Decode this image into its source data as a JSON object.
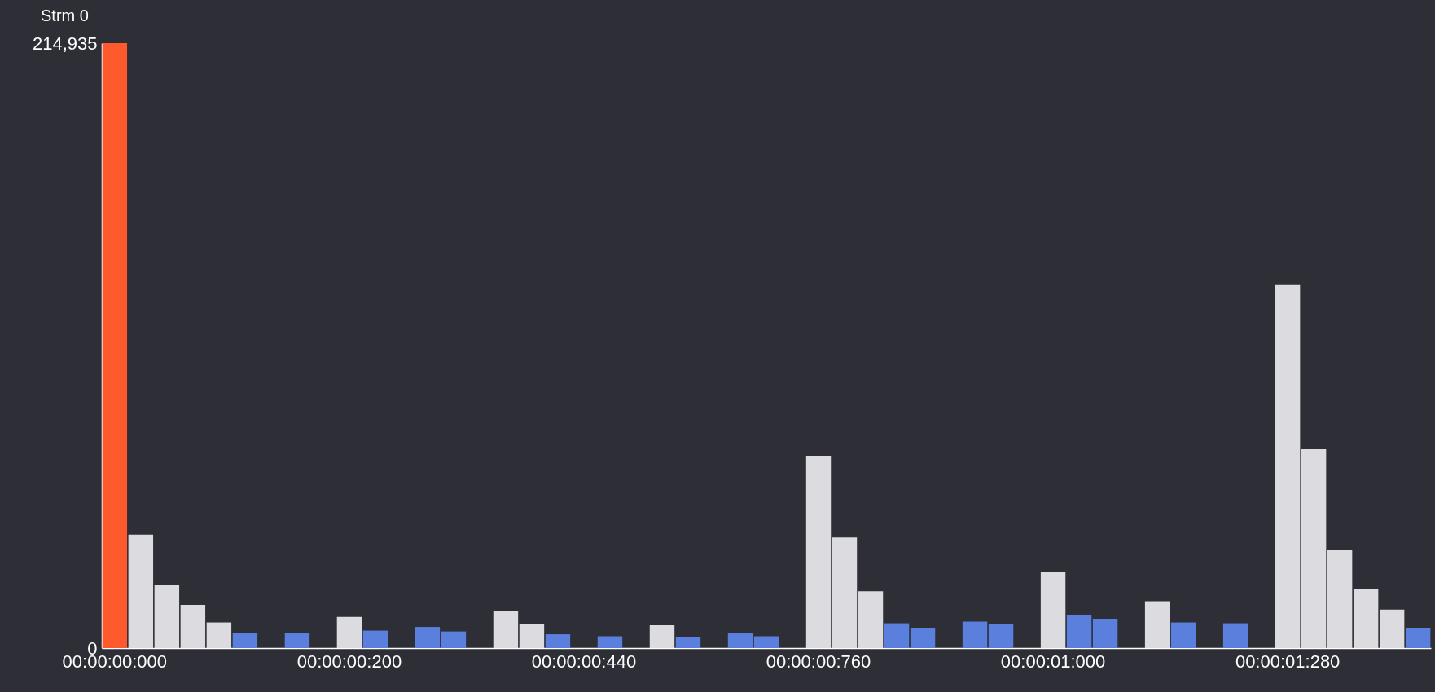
{
  "chart_data": {
    "type": "bar",
    "title": "Strm 0",
    "categories": [
      "00:00:00:000",
      null,
      null,
      null,
      null,
      null,
      null,
      null,
      null,
      "00:00:00:200",
      null,
      null,
      null,
      null,
      null,
      null,
      null,
      null,
      "00:00:00:440",
      null,
      null,
      null,
      null,
      null,
      null,
      null,
      null,
      "00:00:00:760",
      null,
      null,
      null,
      null,
      null,
      null,
      null,
      null,
      "00:00:01:000",
      null,
      null,
      null,
      null,
      null,
      null,
      null,
      null,
      "00:00:01:280",
      null,
      null,
      null,
      null,
      null
    ],
    "values": [
      214935,
      40300,
      22400,
      15300,
      9100,
      5200,
      null,
      5200,
      null,
      11100,
      6200,
      null,
      7500,
      5900,
      null,
      13000,
      8500,
      4900,
      null,
      4200,
      null,
      8100,
      3900,
      null,
      5200,
      4200,
      null,
      68300,
      39300,
      20200,
      8800,
      7200,
      null,
      9400,
      8500,
      null,
      27000,
      11700,
      10400,
      null,
      16600,
      9100,
      null,
      8800,
      null,
      129100,
      70900,
      34800,
      20800,
      13700,
      7200
    ],
    "colors": [
      "#ff5a2e",
      "#dcdce0",
      "#dcdce0",
      "#dcdce0",
      "#dcdce0",
      "#5b7fdc",
      "#5b7fdc",
      "#5b7fdc",
      "#5b7fdc",
      "#dcdce0",
      "#5b7fdc",
      "#5b7fdc",
      "#5b7fdc",
      "#5b7fdc",
      "#5b7fdc",
      "#dcdce0",
      "#dcdce0",
      "#5b7fdc",
      "#5b7fdc",
      "#5b7fdc",
      "#5b7fdc",
      "#dcdce0",
      "#5b7fdc",
      "#5b7fdc",
      "#5b7fdc",
      "#5b7fdc",
      "#5b7fdc",
      "#dcdce0",
      "#dcdce0",
      "#dcdce0",
      "#5b7fdc",
      "#5b7fdc",
      "#5b7fdc",
      "#5b7fdc",
      "#5b7fdc",
      "#5b7fdc",
      "#dcdce0",
      "#5b7fdc",
      "#5b7fdc",
      "#5b7fdc",
      "#dcdce0",
      "#5b7fdc",
      "#5b7fdc",
      "#5b7fdc",
      "#5b7fdc",
      "#dcdce0",
      "#dcdce0",
      "#dcdce0",
      "#dcdce0",
      "#dcdce0",
      "#5b7fdc"
    ],
    "ylim": [
      0,
      214935
    ],
    "yticks": [
      0,
      {
        "value": 214935,
        "label": "214,935"
      }
    ],
    "grid": false
  }
}
